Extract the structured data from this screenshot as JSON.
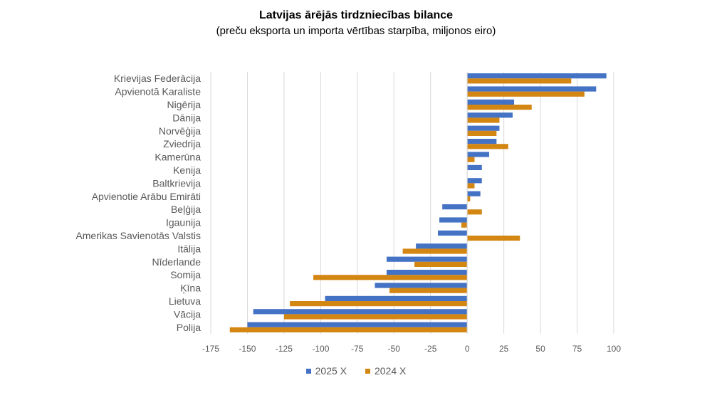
{
  "chart_data": {
    "type": "bar",
    "orientation": "horizontal",
    "title": "Latvijas ārējās tirdzniecības bilance",
    "subtitle": "(preču eksporta un importa vērtības starpība, miljonos eiro)",
    "categories": [
      "Krievijas Federācija",
      "Apvienotā Karaliste",
      "Nigērija",
      "Dānija",
      "Norvēģija",
      "Zviedrija",
      "Kamerūna",
      "Kenija",
      "Baltkrievija",
      "Apvienotie Arābu Emirāti",
      "Beļģija",
      "Igaunija",
      "Amerikas Savienotās Valstis",
      "Itālija",
      "Nīderlande",
      "Somija",
      "Ķīna",
      "Lietuva",
      "Vācija",
      "Polija"
    ],
    "series": [
      {
        "name": "2025 X",
        "color": "#4472C4",
        "values": [
          95,
          88,
          32,
          31,
          22,
          20,
          15,
          10,
          10,
          9,
          -17,
          -19,
          -20,
          -35,
          -55,
          -55,
          -63,
          -97,
          -146,
          -150
        ]
      },
      {
        "name": "2024 X",
        "color": "#D48613",
        "values": [
          71,
          80,
          44,
          22,
          20,
          28,
          5,
          0,
          5,
          2,
          10,
          -4,
          36,
          -44,
          -36,
          -105,
          -53,
          -121,
          -125,
          -162
        ]
      }
    ],
    "xlim": [
      -175,
      100
    ],
    "xticks": [
      -175,
      -150,
      -125,
      -100,
      -75,
      -50,
      -25,
      0,
      25,
      50,
      75,
      100
    ],
    "grid": "vertical",
    "legend_position": "bottom"
  }
}
